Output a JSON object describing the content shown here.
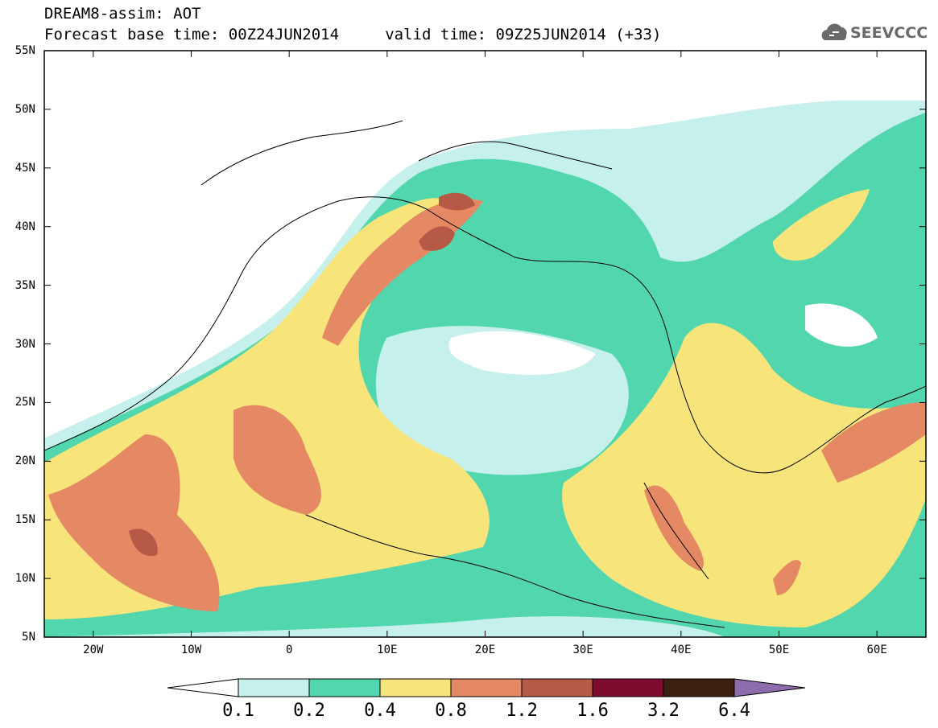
{
  "header": {
    "line1": "DREAM8-assim: AOT",
    "line2": "Forecast base time: 00Z24JUN2014     valid time: 09Z25JUN2014 (+33)",
    "logo_text": "SEEVCCC"
  },
  "map": {
    "lon_range": [
      -25,
      65
    ],
    "lat_range": [
      5,
      55
    ],
    "lat_ticks": [
      "5N",
      "10N",
      "15N",
      "20N",
      "25N",
      "30N",
      "35N",
      "40N",
      "45N",
      "50N",
      "55N"
    ],
    "lon_ticks": [
      "20W",
      "10W",
      "0",
      "10E",
      "20E",
      "30E",
      "40E",
      "50E",
      "60E"
    ]
  },
  "colorbar": {
    "labels": [
      "0.1",
      "0.2",
      "0.4",
      "0.8",
      "1.2",
      "1.6",
      "3.2",
      "6.4"
    ],
    "colors": [
      "#ffffff",
      "#c6f0ec",
      "#52d6ad",
      "#f7e47a",
      "#e58864",
      "#b65a47",
      "#7f0b2f",
      "#3b2010",
      "#8f6cab"
    ]
  }
}
